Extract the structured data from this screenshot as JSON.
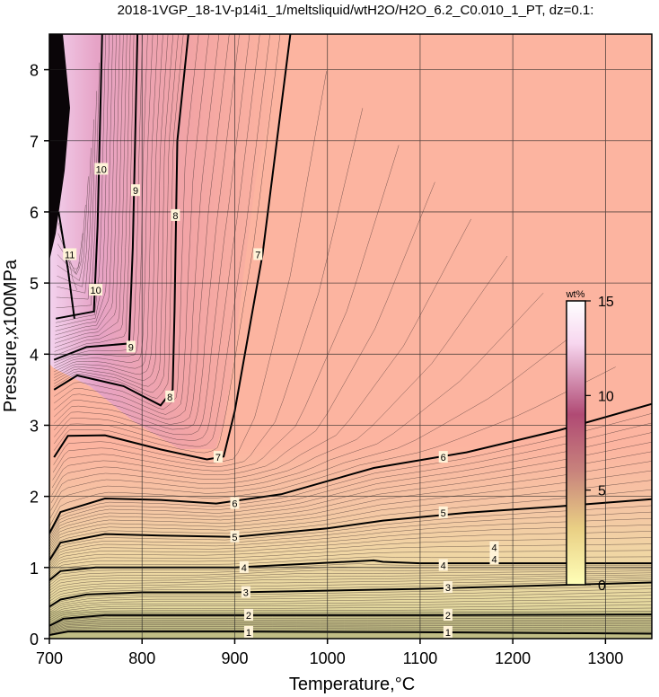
{
  "chart_data": {
    "type": "heatmap",
    "title": "2018-1VGP_18-1V-p14i1_1/meltsliquid/wtH2O/H2O_6.2_C0.010_1_PT, dz=0.1:",
    "xlabel": "Temperature,°C",
    "ylabel": "Pressure,x100MPa",
    "xlim": [
      700,
      1350
    ],
    "ylim": [
      0,
      8.5
    ],
    "x_ticks": [
      "700",
      "800",
      "900",
      "1000",
      "1100",
      "1200",
      "1300"
    ],
    "y_ticks": [
      "0",
      "1",
      "2",
      "3",
      "4",
      "5",
      "6",
      "7",
      "8"
    ],
    "grid": true,
    "colorbar": {
      "label": "wt%",
      "min": 0,
      "max": 15,
      "ticks": [
        "0",
        "5",
        "10",
        "15"
      ],
      "colors": [
        "#ffffb8",
        "#e9cf84",
        "#c8837c",
        "#b04a74",
        "#f7d6ef",
        "#ffffff"
      ]
    },
    "contour_interval_wt_percent": 0.1,
    "major_contours": [
      {
        "level": "1",
        "points": [
          [
            700,
            0.05
          ],
          [
            720,
            0.1
          ],
          [
            760,
            0.1
          ],
          [
            900,
            0.1
          ],
          [
            1100,
            0.09
          ],
          [
            1350,
            0.07
          ]
        ]
      },
      {
        "level": "2",
        "points": [
          [
            700,
            0.18
          ],
          [
            715,
            0.28
          ],
          [
            760,
            0.33
          ],
          [
            900,
            0.33
          ],
          [
            1100,
            0.33
          ],
          [
            1350,
            0.34
          ]
        ]
      },
      {
        "level": "3",
        "points": [
          [
            700,
            0.45
          ],
          [
            712,
            0.55
          ],
          [
            740,
            0.62
          ],
          [
            800,
            0.65
          ],
          [
            900,
            0.65
          ],
          [
            1100,
            0.7
          ],
          [
            1350,
            0.79
          ]
        ]
      },
      {
        "level": "4",
        "points": [
          [
            700,
            0.82
          ],
          [
            712,
            0.95
          ],
          [
            750,
            1.0
          ],
          [
            800,
            1.0
          ],
          [
            900,
            1.0
          ],
          [
            1050,
            1.1
          ],
          [
            1060,
            1.08
          ],
          [
            1100,
            1.06
          ],
          [
            1350,
            1.06
          ]
        ]
      },
      {
        "level": "5",
        "points": [
          [
            700,
            1.1
          ],
          [
            712,
            1.35
          ],
          [
            760,
            1.47
          ],
          [
            820,
            1.45
          ],
          [
            900,
            1.43
          ],
          [
            1000,
            1.55
          ],
          [
            1060,
            1.66
          ],
          [
            1150,
            1.77
          ],
          [
            1250,
            1.86
          ],
          [
            1350,
            1.96
          ]
        ]
      },
      {
        "level": "6",
        "points": [
          [
            700,
            1.48
          ],
          [
            712,
            1.78
          ],
          [
            760,
            1.97
          ],
          [
            820,
            1.95
          ],
          [
            880,
            1.9
          ],
          [
            950,
            2.03
          ],
          [
            1050,
            2.4
          ],
          [
            1150,
            2.62
          ],
          [
            1250,
            2.93
          ],
          [
            1350,
            3.3
          ]
        ]
      },
      {
        "level": "7",
        "points": [
          [
            705,
            2.55
          ],
          [
            720,
            2.85
          ],
          [
            760,
            2.86
          ],
          [
            820,
            2.66
          ],
          [
            870,
            2.52
          ],
          [
            888,
            2.56
          ],
          [
            900,
            3.2
          ],
          [
            930,
            5.4
          ],
          [
            960,
            8.5
          ]
        ]
      },
      {
        "level": "8",
        "points": [
          [
            705,
            3.5
          ],
          [
            730,
            3.7
          ],
          [
            780,
            3.55
          ],
          [
            820,
            3.28
          ],
          [
            833,
            3.5
          ],
          [
            835,
            4.6
          ],
          [
            838,
            7.0
          ],
          [
            850,
            8.5
          ]
        ]
      },
      {
        "level": "9",
        "points": [
          [
            705,
            3.92
          ],
          [
            740,
            4.1
          ],
          [
            786,
            4.15
          ],
          [
            790,
            5.5
          ],
          [
            795,
            8.5
          ]
        ]
      },
      {
        "level": "10",
        "points": [
          [
            707,
            4.5
          ],
          [
            748,
            4.6
          ],
          [
            752,
            5.8
          ],
          [
            757,
            8.5
          ]
        ]
      },
      {
        "level": "11",
        "points": [
          [
            710,
            6.0
          ],
          [
            720,
            5.2
          ],
          [
            727,
            4.5
          ]
        ]
      }
    ],
    "labels": [
      {
        "text": "1",
        "x": 915,
        "y": 0.09
      },
      {
        "text": "1",
        "x": 1130,
        "y": 0.09
      },
      {
        "text": "2",
        "x": 915,
        "y": 0.33
      },
      {
        "text": "2",
        "x": 1130,
        "y": 0.33
      },
      {
        "text": "3",
        "x": 912,
        "y": 0.65
      },
      {
        "text": "3",
        "x": 1130,
        "y": 0.72
      },
      {
        "text": "4",
        "x": 910,
        "y": 1.0
      },
      {
        "text": "4",
        "x": 1125,
        "y": 1.03
      },
      {
        "text": "4",
        "x": 1180,
        "y": 1.28
      },
      {
        "text": "4",
        "x": 1180,
        "y": 1.12
      },
      {
        "text": "5",
        "x": 900,
        "y": 1.43
      },
      {
        "text": "5",
        "x": 1125,
        "y": 1.77
      },
      {
        "text": "6",
        "x": 900,
        "y": 1.9
      },
      {
        "text": "6",
        "x": 1125,
        "y": 2.55
      },
      {
        "text": "7",
        "x": 882,
        "y": 2.55
      },
      {
        "text": "7",
        "x": 925,
        "y": 5.4
      },
      {
        "text": "8",
        "x": 830,
        "y": 3.4
      },
      {
        "text": "8",
        "x": 836,
        "y": 5.95
      },
      {
        "text": "9",
        "x": 788,
        "y": 4.1
      },
      {
        "text": "9",
        "x": 793,
        "y": 6.3
      },
      {
        "text": "10",
        "x": 750,
        "y": 4.9
      },
      {
        "text": "10",
        "x": 756,
        "y": 6.6
      },
      {
        "text": "11",
        "x": 722,
        "y": 5.4
      }
    ]
  }
}
